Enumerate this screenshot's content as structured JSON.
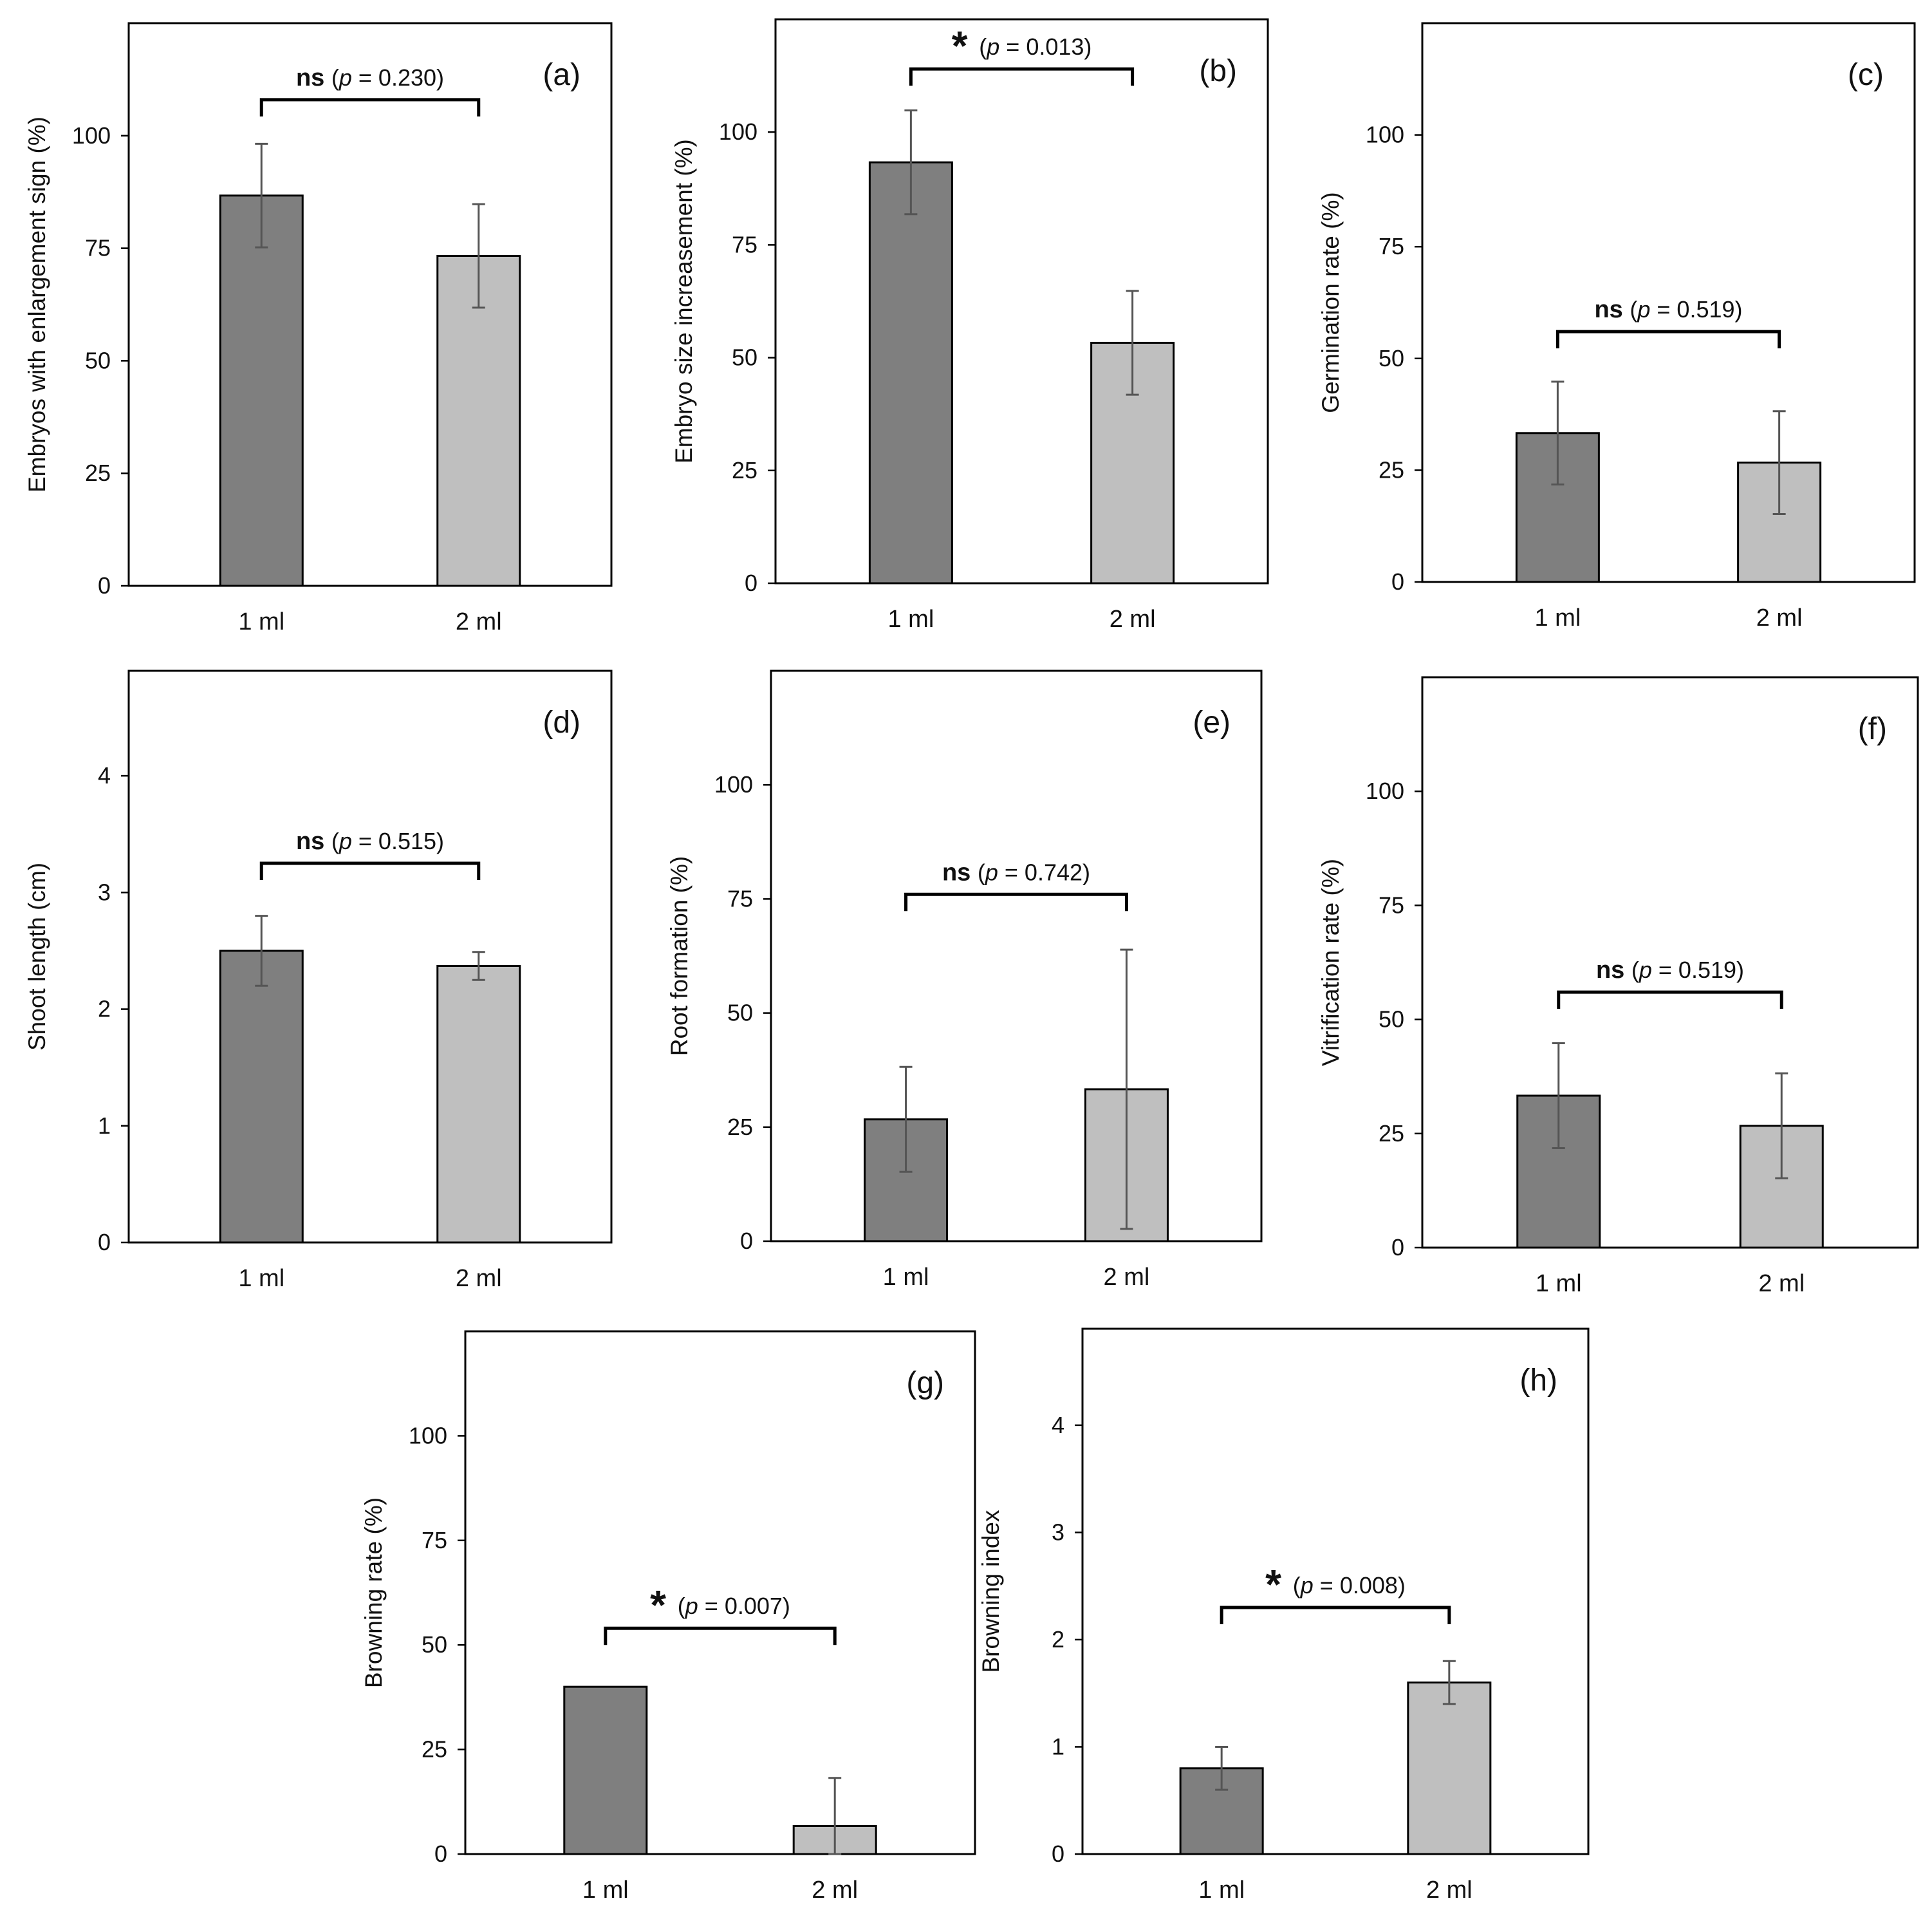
{
  "chart_data": [
    {
      "panel_label": "(a)",
      "type": "bar",
      "categories": [
        "1 ml",
        "2 ml"
      ],
      "values": [
        86.7,
        73.3
      ],
      "errors": [
        11.5,
        11.5
      ],
      "ylabel": "Embryos with enlargement sign (%)",
      "ylim": [
        0,
        125
      ],
      "yticks": [
        "0",
        "25",
        "50",
        "75",
        "100"
      ],
      "colors": [
        "#7f7f7f",
        "#bfbfbf"
      ],
      "significance": {
        "mark": "ns",
        "text": "(p = 0.230)",
        "p_label": "p",
        "p_value": "= 0.230"
      }
    },
    {
      "panel_label": "(b)",
      "type": "bar",
      "categories": [
        "1 ml",
        "2 ml"
      ],
      "values": [
        93.3,
        53.3
      ],
      "errors": [
        11.5,
        11.5
      ],
      "ylabel": "Embryo size increasement (%)",
      "ylim": [
        0,
        125
      ],
      "yticks": [
        "0",
        "25",
        "50",
        "75",
        "100"
      ],
      "colors": [
        "#7f7f7f",
        "#bfbfbf"
      ],
      "significance": {
        "mark": "*",
        "text": "(p = 0.013)",
        "p_label": "p",
        "p_value": "= 0.013"
      }
    },
    {
      "panel_label": "(c)",
      "type": "bar",
      "categories": [
        "1 ml",
        "2 ml"
      ],
      "values": [
        33.3,
        26.7
      ],
      "errors": [
        11.5,
        11.5
      ],
      "ylabel": "Germination rate (%)",
      "ylim": [
        0,
        125
      ],
      "yticks": [
        "0",
        "25",
        "50",
        "75",
        "100"
      ],
      "colors": [
        "#7f7f7f",
        "#bfbfbf"
      ],
      "significance": {
        "mark": "ns",
        "text": "(p = 0.519)",
        "p_label": "p",
        "p_value": "= 0.519"
      }
    },
    {
      "panel_label": "(d)",
      "type": "bar",
      "categories": [
        "1 ml",
        "2 ml"
      ],
      "values": [
        2.5,
        2.37
      ],
      "errors": [
        0.3,
        0.12
      ],
      "ylabel": "Shoot length (cm)",
      "ylim": [
        0,
        4.9
      ],
      "yticks": [
        "0",
        "1",
        "2",
        "3",
        "4"
      ],
      "colors": [
        "#7f7f7f",
        "#bfbfbf"
      ],
      "significance": {
        "mark": "ns",
        "text": "(p = 0.515)",
        "p_label": "p",
        "p_value": "= 0.515"
      }
    },
    {
      "panel_label": "(e)",
      "type": "bar",
      "categories": [
        "1 ml",
        "2 ml"
      ],
      "values": [
        26.7,
        33.3
      ],
      "errors": [
        11.5,
        30.6
      ],
      "ylabel": "Root formation (%)",
      "ylim": [
        0,
        125
      ],
      "yticks": [
        "0",
        "25",
        "50",
        "75",
        "100"
      ],
      "colors": [
        "#7f7f7f",
        "#bfbfbf"
      ],
      "significance": {
        "mark": "ns",
        "text": "(p = 0.742)",
        "p_label": "p",
        "p_value": "= 0.742"
      }
    },
    {
      "panel_label": "(f)",
      "type": "bar",
      "categories": [
        "1 ml",
        "2 ml"
      ],
      "values": [
        33.3,
        26.7
      ],
      "errors": [
        11.5,
        11.5
      ],
      "ylabel": "Vitrification rate (%)",
      "ylim": [
        0,
        125
      ],
      "yticks": [
        "0",
        "25",
        "50",
        "75",
        "100"
      ],
      "colors": [
        "#7f7f7f",
        "#bfbfbf"
      ],
      "significance": {
        "mark": "ns",
        "text": "(p = 0.519)",
        "p_label": "p",
        "p_value": "= 0.519"
      }
    },
    {
      "panel_label": "(g)",
      "type": "bar",
      "categories": [
        "1 ml",
        "2 ml"
      ],
      "values": [
        40.0,
        6.7
      ],
      "errors": [
        0,
        11.5
      ],
      "ylabel": "Browning rate (%)",
      "ylim": [
        0,
        125
      ],
      "yticks": [
        "0",
        "25",
        "50",
        "75",
        "100"
      ],
      "colors": [
        "#7f7f7f",
        "#bfbfbf"
      ],
      "significance": {
        "mark": "*",
        "text": "(p = 0.007)",
        "p_label": "p",
        "p_value": "= 0.007"
      }
    },
    {
      "panel_label": "(h)",
      "type": "bar",
      "categories": [
        "1 ml",
        "2 ml"
      ],
      "values": [
        0.8,
        1.6
      ],
      "errors": [
        0.2,
        0.2
      ],
      "ylabel": "Browning index",
      "ylim": [
        0,
        4.9
      ],
      "yticks": [
        "0",
        "1",
        "2",
        "3",
        "4"
      ],
      "colors": [
        "#7f7f7f",
        "#bfbfbf"
      ],
      "significance": {
        "mark": "*",
        "text": "(p = 0.008)",
        "p_label": "p",
        "p_value": "= 0.008"
      }
    }
  ]
}
